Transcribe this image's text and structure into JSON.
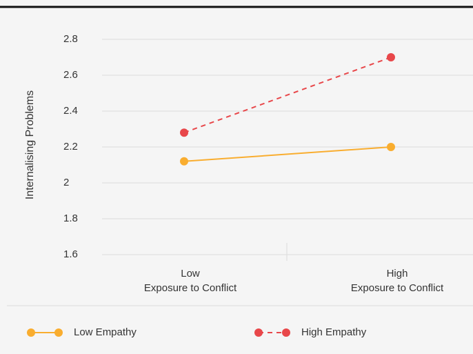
{
  "chart_data": {
    "type": "line",
    "y_label": "Internalising Problems",
    "categories": [
      [
        "Low",
        "Exposure to Conflict"
      ],
      [
        "High",
        "Exposure to Conflict"
      ]
    ],
    "series": [
      {
        "name": "Low Empathy",
        "color": "#f9ad2f",
        "dash": false,
        "values": [
          2.12,
          2.2
        ]
      },
      {
        "name": "High Empathy",
        "color": "#e8474a",
        "dash": true,
        "values": [
          2.28,
          2.7
        ]
      }
    ],
    "ylim": [
      1.6,
      2.8
    ],
    "yticks": [
      1.6,
      1.8,
      2,
      2.2,
      2.4,
      2.6,
      2.8
    ],
    "grid": true
  }
}
